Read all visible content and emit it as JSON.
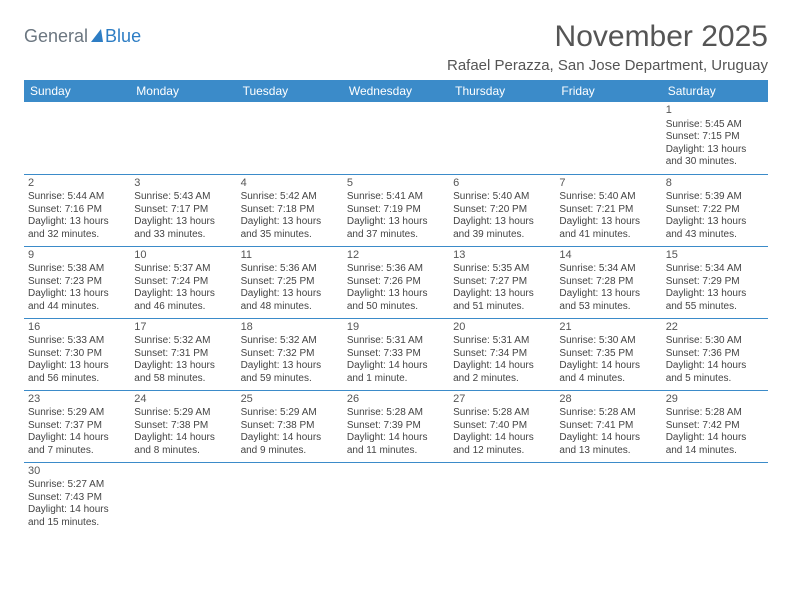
{
  "logo": {
    "text_a": "General",
    "text_b": "Blue"
  },
  "title": "November 2025",
  "location": "Rafael Perazza, San Jose Department, Uruguay",
  "colors": {
    "header_bg": "#3b8bc9",
    "header_fg": "#ffffff",
    "rule": "#3b8bc9",
    "text": "#444444",
    "title": "#555555",
    "logo_accent": "#2d7dc4",
    "logo_muted": "#6b7680"
  },
  "weekdays": [
    "Sunday",
    "Monday",
    "Tuesday",
    "Wednesday",
    "Thursday",
    "Friday",
    "Saturday"
  ],
  "weeks": [
    [
      null,
      null,
      null,
      null,
      null,
      null,
      {
        "n": "1",
        "sr": "5:45 AM",
        "ss": "7:15 PM",
        "dl": "13 hours and 30 minutes."
      }
    ],
    [
      {
        "n": "2",
        "sr": "5:44 AM",
        "ss": "7:16 PM",
        "dl": "13 hours and 32 minutes."
      },
      {
        "n": "3",
        "sr": "5:43 AM",
        "ss": "7:17 PM",
        "dl": "13 hours and 33 minutes."
      },
      {
        "n": "4",
        "sr": "5:42 AM",
        "ss": "7:18 PM",
        "dl": "13 hours and 35 minutes."
      },
      {
        "n": "5",
        "sr": "5:41 AM",
        "ss": "7:19 PM",
        "dl": "13 hours and 37 minutes."
      },
      {
        "n": "6",
        "sr": "5:40 AM",
        "ss": "7:20 PM",
        "dl": "13 hours and 39 minutes."
      },
      {
        "n": "7",
        "sr": "5:40 AM",
        "ss": "7:21 PM",
        "dl": "13 hours and 41 minutes."
      },
      {
        "n": "8",
        "sr": "5:39 AM",
        "ss": "7:22 PM",
        "dl": "13 hours and 43 minutes."
      }
    ],
    [
      {
        "n": "9",
        "sr": "5:38 AM",
        "ss": "7:23 PM",
        "dl": "13 hours and 44 minutes."
      },
      {
        "n": "10",
        "sr": "5:37 AM",
        "ss": "7:24 PM",
        "dl": "13 hours and 46 minutes."
      },
      {
        "n": "11",
        "sr": "5:36 AM",
        "ss": "7:25 PM",
        "dl": "13 hours and 48 minutes."
      },
      {
        "n": "12",
        "sr": "5:36 AM",
        "ss": "7:26 PM",
        "dl": "13 hours and 50 minutes."
      },
      {
        "n": "13",
        "sr": "5:35 AM",
        "ss": "7:27 PM",
        "dl": "13 hours and 51 minutes."
      },
      {
        "n": "14",
        "sr": "5:34 AM",
        "ss": "7:28 PM",
        "dl": "13 hours and 53 minutes."
      },
      {
        "n": "15",
        "sr": "5:34 AM",
        "ss": "7:29 PM",
        "dl": "13 hours and 55 minutes."
      }
    ],
    [
      {
        "n": "16",
        "sr": "5:33 AM",
        "ss": "7:30 PM",
        "dl": "13 hours and 56 minutes."
      },
      {
        "n": "17",
        "sr": "5:32 AM",
        "ss": "7:31 PM",
        "dl": "13 hours and 58 minutes."
      },
      {
        "n": "18",
        "sr": "5:32 AM",
        "ss": "7:32 PM",
        "dl": "13 hours and 59 minutes."
      },
      {
        "n": "19",
        "sr": "5:31 AM",
        "ss": "7:33 PM",
        "dl": "14 hours and 1 minute."
      },
      {
        "n": "20",
        "sr": "5:31 AM",
        "ss": "7:34 PM",
        "dl": "14 hours and 2 minutes."
      },
      {
        "n": "21",
        "sr": "5:30 AM",
        "ss": "7:35 PM",
        "dl": "14 hours and 4 minutes."
      },
      {
        "n": "22",
        "sr": "5:30 AM",
        "ss": "7:36 PM",
        "dl": "14 hours and 5 minutes."
      }
    ],
    [
      {
        "n": "23",
        "sr": "5:29 AM",
        "ss": "7:37 PM",
        "dl": "14 hours and 7 minutes."
      },
      {
        "n": "24",
        "sr": "5:29 AM",
        "ss": "7:38 PM",
        "dl": "14 hours and 8 minutes."
      },
      {
        "n": "25",
        "sr": "5:29 AM",
        "ss": "7:38 PM",
        "dl": "14 hours and 9 minutes."
      },
      {
        "n": "26",
        "sr": "5:28 AM",
        "ss": "7:39 PM",
        "dl": "14 hours and 11 minutes."
      },
      {
        "n": "27",
        "sr": "5:28 AM",
        "ss": "7:40 PM",
        "dl": "14 hours and 12 minutes."
      },
      {
        "n": "28",
        "sr": "5:28 AM",
        "ss": "7:41 PM",
        "dl": "14 hours and 13 minutes."
      },
      {
        "n": "29",
        "sr": "5:28 AM",
        "ss": "7:42 PM",
        "dl": "14 hours and 14 minutes."
      }
    ],
    [
      {
        "n": "30",
        "sr": "5:27 AM",
        "ss": "7:43 PM",
        "dl": "14 hours and 15 minutes."
      },
      null,
      null,
      null,
      null,
      null,
      null
    ]
  ],
  "labels": {
    "sunrise": "Sunrise:",
    "sunset": "Sunset:",
    "daylight": "Daylight:"
  }
}
